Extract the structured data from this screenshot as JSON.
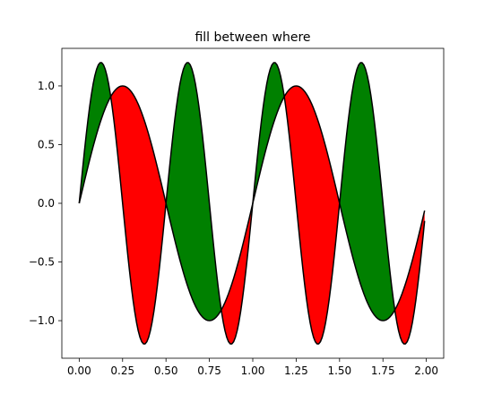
{
  "chart_data": {
    "type": "area",
    "title": "fill between where",
    "xlabel": "",
    "ylabel": "",
    "xlim": [
      -0.1,
      2.1
    ],
    "ylim": [
      -1.32,
      1.32
    ],
    "x_ticks": [
      0.0,
      0.25,
      0.5,
      0.75,
      1.0,
      1.25,
      1.5,
      1.75,
      2.0
    ],
    "x_tick_labels": [
      "0.00",
      "0.25",
      "0.50",
      "0.75",
      "1.00",
      "1.25",
      "1.50",
      "1.75",
      "2.00"
    ],
    "y_ticks": [
      -1.0,
      -0.5,
      0.0,
      0.5,
      1.0
    ],
    "y_tick_labels": [
      "−1.0",
      "−0.5",
      "0.0",
      "0.5",
      "1.0"
    ],
    "grid": false,
    "x_range": [
      0.0,
      1.99
    ],
    "x_step": 0.01,
    "series": [
      {
        "formula": "sin(2*pi*x)",
        "amplitude": 1.0,
        "frequency": 1.0,
        "color": "#000000"
      },
      {
        "formula": "1.2*sin(4*pi*x)",
        "amplitude": 1.2,
        "frequency": 2.0,
        "color": "#000000"
      }
    ],
    "fills": [
      {
        "where": "y2 >= y1",
        "color": "#008000"
      },
      {
        "where": "y2 <= y1",
        "color": "#ff0000"
      }
    ]
  }
}
